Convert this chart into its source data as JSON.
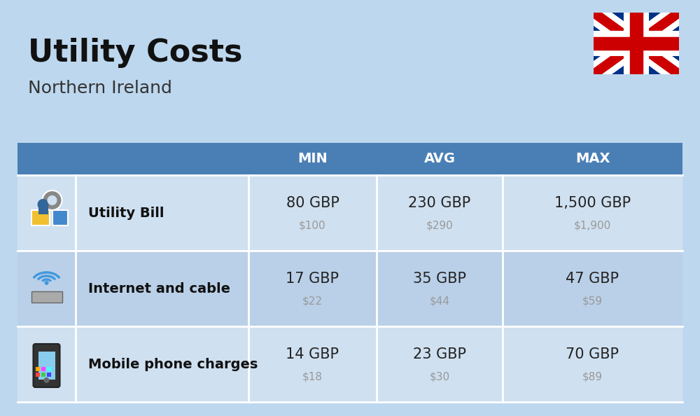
{
  "title": "Utility Costs",
  "subtitle": "Northern Ireland",
  "background_color": "#bdd7ee",
  "header_bg_color": "#4a7fb5",
  "header_text_color": "#ffffff",
  "row_bg_color_1": "#cfe0f0",
  "row_bg_color_2": "#bad0e8",
  "divider_color": "#ffffff",
  "headers": [
    "MIN",
    "AVG",
    "MAX"
  ],
  "rows": [
    {
      "label": "Utility Bill",
      "min_gbp": "80 GBP",
      "min_usd": "$100",
      "avg_gbp": "230 GBP",
      "avg_usd": "$290",
      "max_gbp": "1,500 GBP",
      "max_usd": "$1,900"
    },
    {
      "label": "Internet and cable",
      "min_gbp": "17 GBP",
      "min_usd": "$22",
      "avg_gbp": "35 GBP",
      "avg_usd": "$44",
      "max_gbp": "47 GBP",
      "max_usd": "$59"
    },
    {
      "label": "Mobile phone charges",
      "min_gbp": "14 GBP",
      "min_usd": "$18",
      "avg_gbp": "23 GBP",
      "avg_usd": "$30",
      "max_gbp": "70 GBP",
      "max_usd": "$89"
    }
  ],
  "gbp_fontsize": 15,
  "usd_fontsize": 11,
  "label_fontsize": 14,
  "header_fontsize": 14,
  "title_fontsize": 32,
  "subtitle_fontsize": 18,
  "usd_color": "#999999",
  "gbp_color": "#222222",
  "label_color": "#111111"
}
